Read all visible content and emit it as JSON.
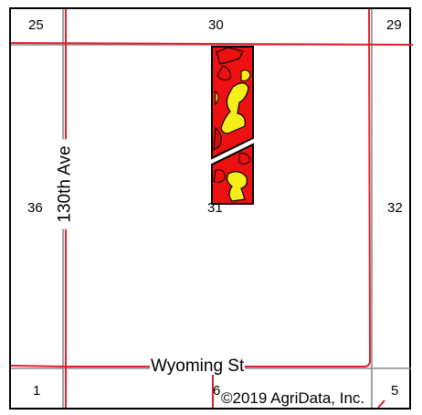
{
  "map": {
    "sections": {
      "top_left": "25",
      "top_center": "30",
      "top_right": "29",
      "left_mid": "36",
      "center": "31",
      "right_mid": "32",
      "bottom_left": "1",
      "bottom_center": "6",
      "bottom_right": "5"
    },
    "roads": {
      "vertical_road": "130th Ave",
      "horizontal_road": "Wyoming St"
    },
    "copyright": "©2019 AgriData, Inc.",
    "colors": {
      "road": "#e0202a",
      "section_line": "#888888",
      "field_red": "#ee1111",
      "field_yellow": "#f5ee18",
      "field_outline": "#000000"
    }
  }
}
